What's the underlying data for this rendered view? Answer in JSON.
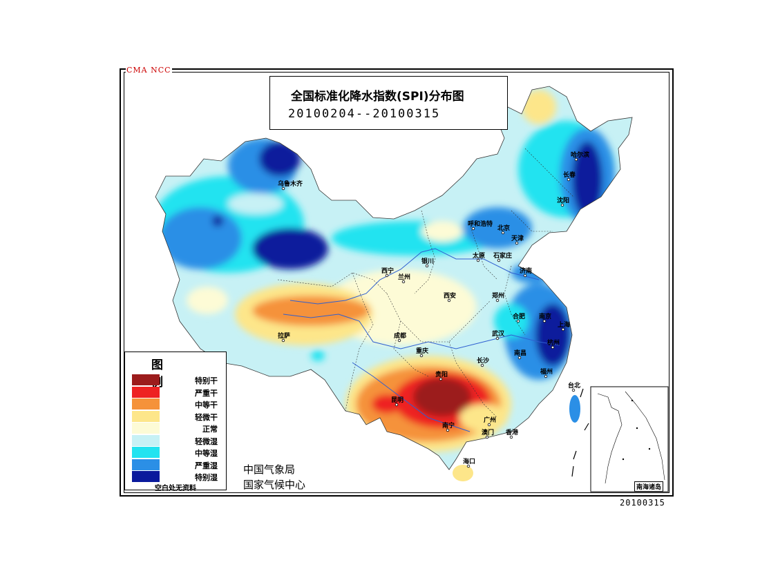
{
  "tag": "CMA NCC",
  "title": {
    "line1": "全国标准化降水指数(SPI)分布图",
    "line2": "20100204--20100315"
  },
  "legend": {
    "title": "图 例",
    "items": [
      {
        "label": "特别干",
        "color": "#9c1c1c"
      },
      {
        "label": "严重干",
        "color": "#ee2222"
      },
      {
        "label": "中等干",
        "color": "#f5923a"
      },
      {
        "label": "轻微干",
        "color": "#fde68a"
      },
      {
        "label": "正常",
        "color": "#fdfbd6"
      },
      {
        "label": "轻微湿",
        "color": "#c7f1f5"
      },
      {
        "label": "中等湿",
        "color": "#22e3f0"
      },
      {
        "label": "严重湿",
        "color": "#2b8fe6"
      },
      {
        "label": "特别湿",
        "color": "#0a1a9c"
      }
    ],
    "footnote": "空白处无资料"
  },
  "org": {
    "line1": "中国气象局",
    "line2": "国家气候中心"
  },
  "date_stamp": "20100315",
  "inset": {
    "label": "南海诸岛"
  },
  "cities": [
    "乌鲁木齐",
    "哈尔滨",
    "长春",
    "沈阳",
    "呼和浩特",
    "北京",
    "天津",
    "太原",
    "石家庄",
    "银川",
    "西宁",
    "兰州",
    "济南",
    "郑州",
    "西安",
    "合肥",
    "南京",
    "上海",
    "杭州",
    "武汉",
    "南昌",
    "长沙",
    "福州",
    "台北",
    "拉萨",
    "成都",
    "重庆",
    "贵阳",
    "昆明",
    "南宁",
    "广州",
    "澳门",
    "香港",
    "海口"
  ]
}
